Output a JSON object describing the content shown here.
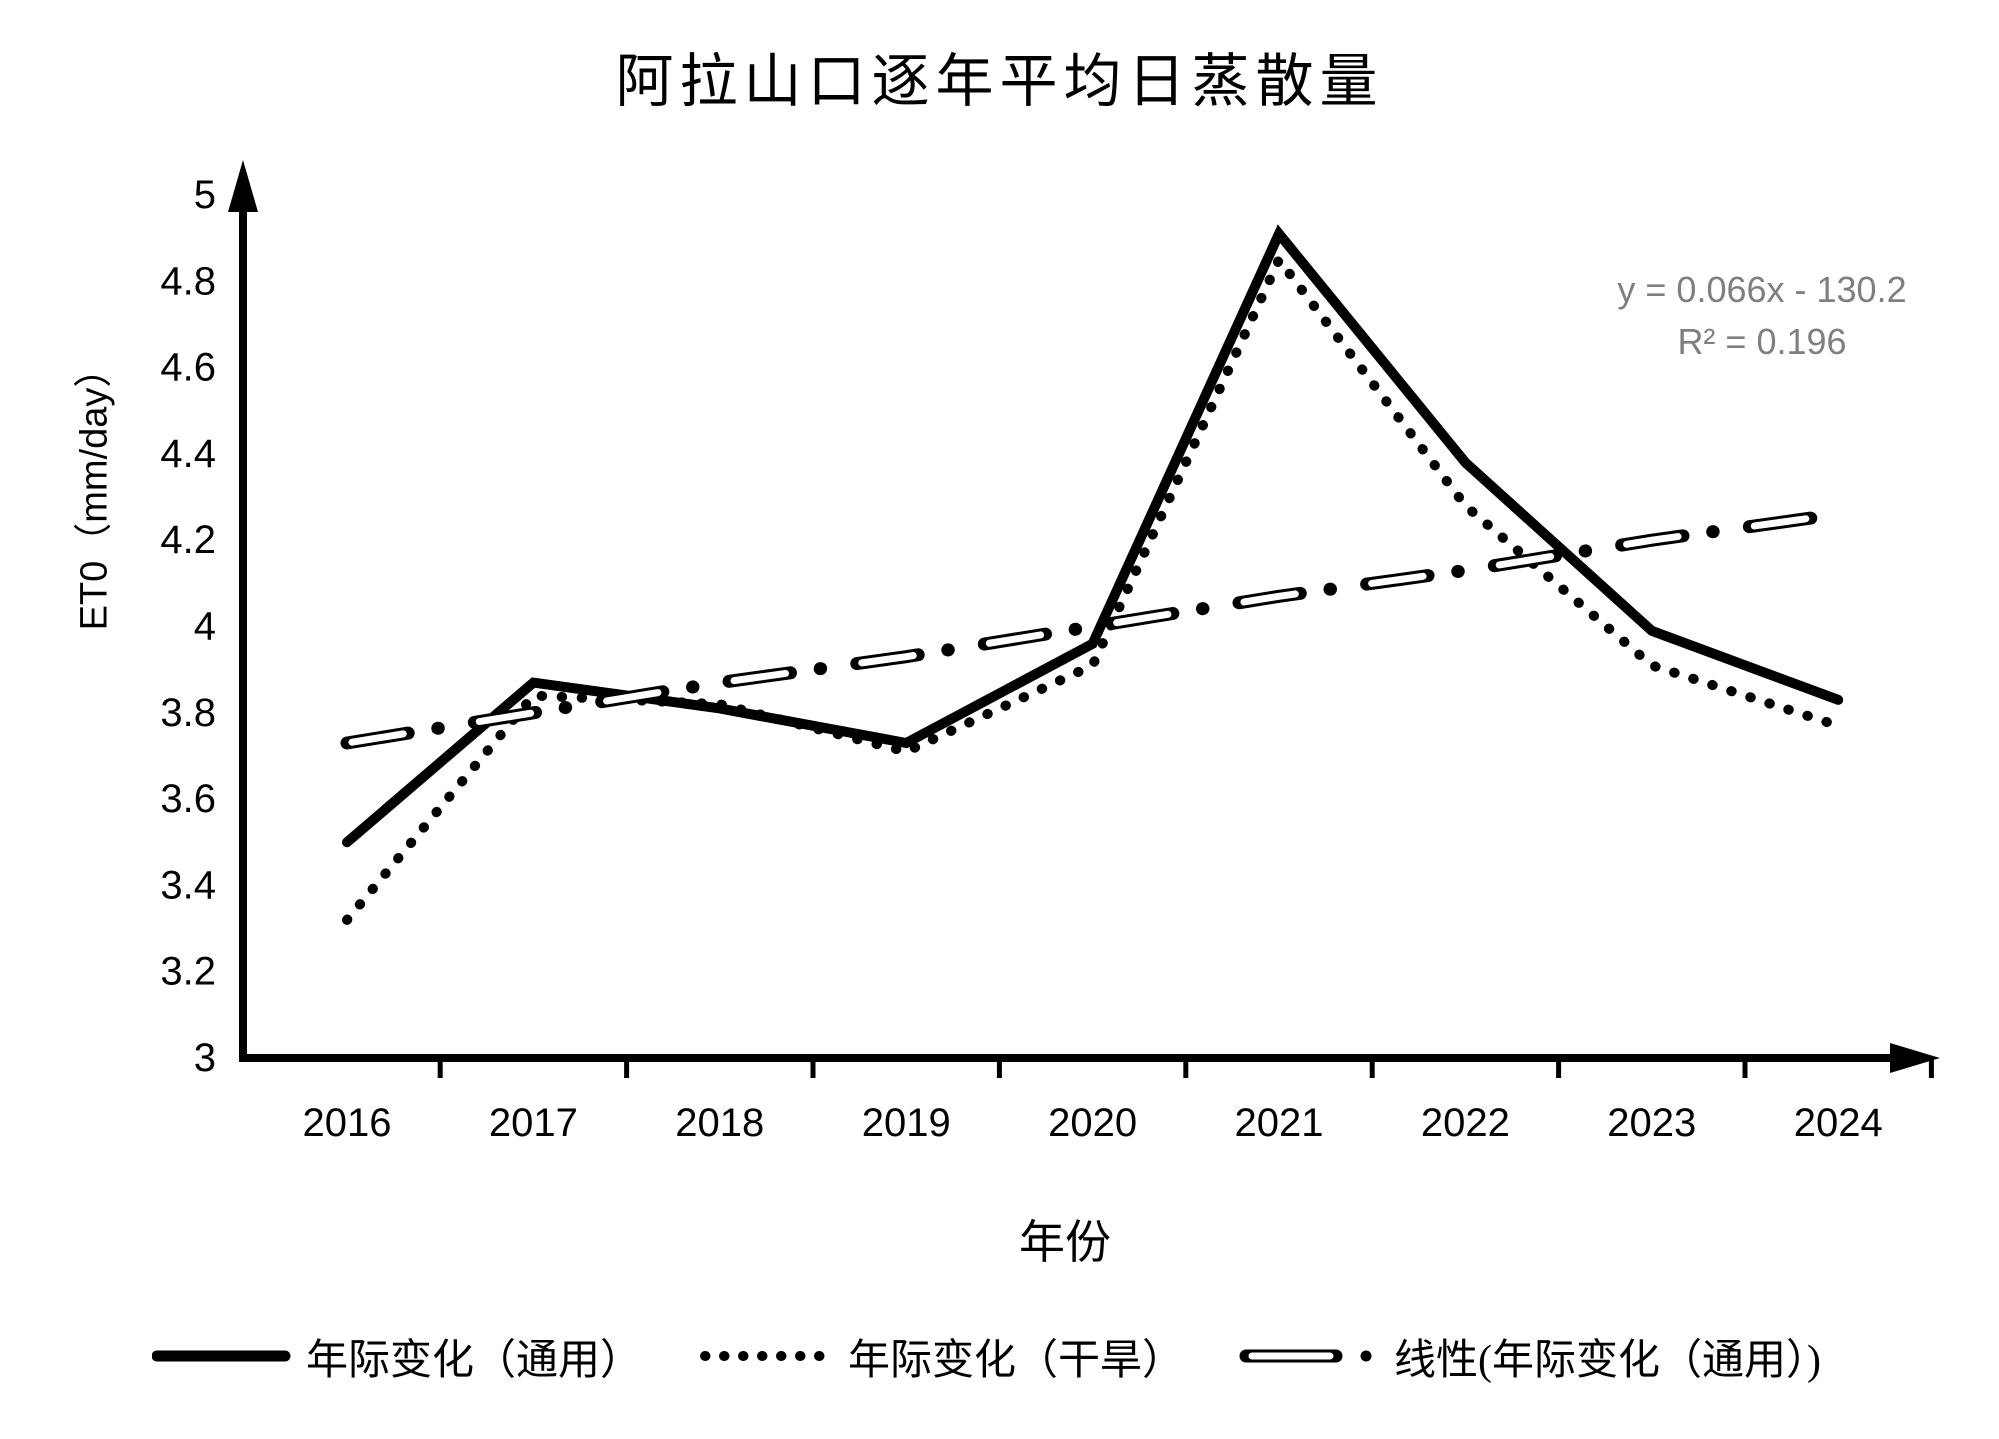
{
  "title": "阿拉山口逐年平均日蒸散量",
  "chart_data": {
    "type": "line",
    "categories": [
      "2016",
      "2017",
      "2018",
      "2019",
      "2020",
      "2021",
      "2022",
      "2023",
      "2024"
    ],
    "series": [
      {
        "name": "年际变化（通用）",
        "style": "solid",
        "values": [
          3.5,
          3.87,
          3.81,
          3.73,
          3.96,
          4.91,
          4.38,
          3.99,
          3.83
        ]
      },
      {
        "name": "年际变化（干旱）",
        "style": "dotted",
        "values": [
          3.32,
          3.84,
          3.82,
          3.71,
          3.91,
          4.85,
          4.28,
          3.91,
          3.77
        ]
      },
      {
        "name": "线性(年际变化（通用）)",
        "style": "dash-dot-hollow",
        "values": [
          3.73,
          3.8,
          3.87,
          3.93,
          4.0,
          4.07,
          4.13,
          4.2,
          4.26
        ]
      }
    ],
    "xlabel": "年份",
    "ylabel": "ET0（mm/day）",
    "ylim": [
      3,
      5
    ],
    "ytick_step": 0.2,
    "ytick_labels": [
      "3",
      "3.2",
      "3.4",
      "3.6",
      "3.8",
      "4",
      "4.2",
      "4.4",
      "4.6",
      "4.8",
      "5"
    ],
    "grid": "off",
    "legend_position": "bottom",
    "line_color": "#000000",
    "annotation": {
      "line1": "y = 0.066x - 130.2",
      "line2": "R² = 0.196",
      "color": "#7f7f7f"
    }
  }
}
